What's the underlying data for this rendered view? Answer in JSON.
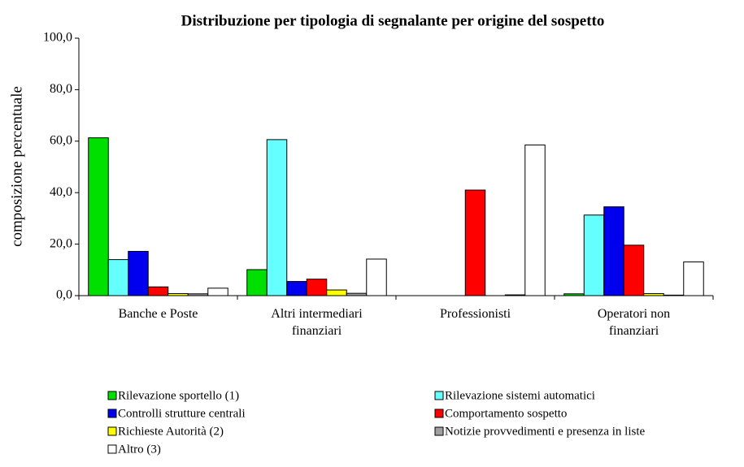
{
  "chart_data": {
    "type": "bar",
    "title": "Distribuzione per tipologia di segnalante per origine del sospetto",
    "y_label": "composizione percentuale",
    "categories": [
      "Banche e Poste",
      "Altri intermediari finanziari",
      "Professionisti",
      "Operatori non finanziari"
    ],
    "series": [
      {
        "name": "Rilevazione sportello (1)",
        "color": "#00e000",
        "values": [
          61.3,
          10.1,
          0,
          0.7
        ]
      },
      {
        "name": "Rilevazione sistemi automatici",
        "color": "#66ffff",
        "values": [
          14.0,
          60.6,
          0,
          31.3
        ]
      },
      {
        "name": "Controlli strutture centrali",
        "color": "#0000ee",
        "values": [
          17.2,
          5.5,
          0,
          34.5
        ]
      },
      {
        "name": "Comportamento sospetto",
        "color": "#ff0000",
        "values": [
          3.4,
          6.4,
          41.0,
          19.6
        ]
      },
      {
        "name": "Richieste Autorità (2)",
        "color": "#ffff00",
        "values": [
          0.8,
          2.2,
          0,
          0.8
        ]
      },
      {
        "name": "Notizie provvedimenti e presenza in liste",
        "color": "#a0a0a0",
        "values": [
          0.7,
          0.9,
          0.3,
          0.2
        ]
      },
      {
        "name": "Altro (3)",
        "color": "#ffffff",
        "values": [
          2.9,
          14.2,
          58.5,
          13.1
        ]
      }
    ],
    "ylim": [
      0,
      100
    ],
    "yticks": [
      {
        "value": 0,
        "label": "0,0"
      },
      {
        "value": 20,
        "label": "20,0"
      },
      {
        "value": 40,
        "label": "40,0"
      },
      {
        "value": 60,
        "label": "60,0"
      },
      {
        "value": 80,
        "label": "80,0"
      },
      {
        "value": 100,
        "label": "100,0"
      }
    ],
    "grid": false
  }
}
